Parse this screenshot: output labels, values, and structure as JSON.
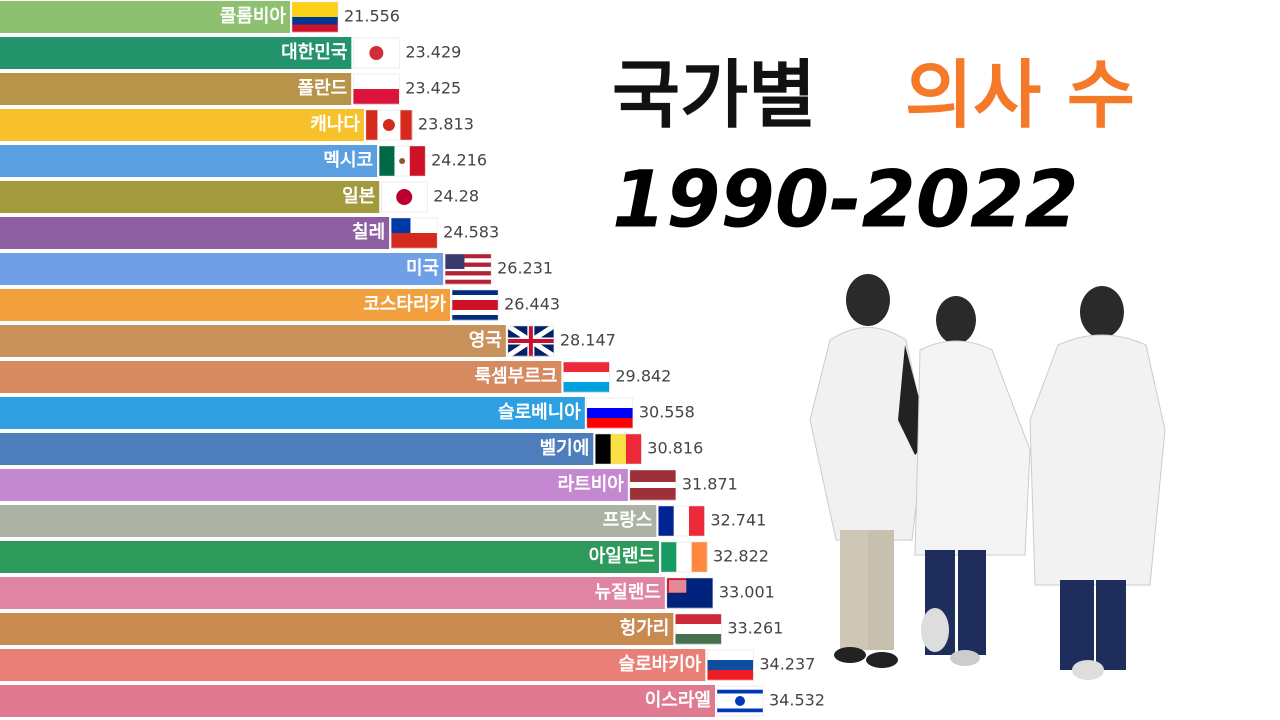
{
  "chart_data": {
    "type": "bar",
    "title": "국가별",
    "title_highlight": "의사 수",
    "subtitle": "1990-2022",
    "categories": [
      "콜롬비아",
      "대한민국",
      "폴란드",
      "캐나다",
      "멕시코",
      "일본",
      "칠레",
      "미국",
      "코스타리카",
      "영국",
      "룩셈부르크",
      "슬로베니아",
      "벨기에",
      "라트비아",
      "프랑스",
      "아일랜드",
      "뉴질랜드",
      "헝가리",
      "슬로바키아",
      "이스라엘"
    ],
    "values": [
      21.556,
      23.429,
      23.425,
      23.813,
      24.216,
      24.28,
      24.583,
      26.231,
      26.443,
      28.147,
      29.842,
      30.558,
      30.816,
      31.871,
      32.741,
      32.822,
      33.001,
      33.261,
      34.237,
      34.532
    ],
    "colors": [
      "#8dc06f",
      "#23936b",
      "#b8944a",
      "#f6c12a",
      "#5aa0e0",
      "#a29a3d",
      "#8e5ea2",
      "#6f9fe6",
      "#f2a03d",
      "#c9925a",
      "#d58a60",
      "#2e9fe0",
      "#4d7dbb",
      "#c488d1",
      "#adb3a4",
      "#2d9a5b",
      "#e084a4",
      "#c98a50",
      "#e88078",
      "#e07a90"
    ],
    "title_color": "#111111",
    "highlight_color": "#f47a2a"
  }
}
